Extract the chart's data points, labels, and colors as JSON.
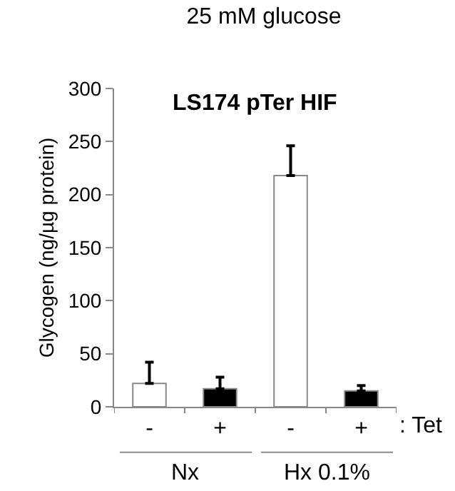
{
  "chart_data": {
    "type": "bar",
    "title": "25 mM glucose",
    "subtitle": "LS174 pTer HIF",
    "ylabel": "Glycogen (ng/µg protein)",
    "categories": [
      "-",
      "+",
      "-",
      "+"
    ],
    "values": [
      22,
      17,
      218,
      15
    ],
    "colors": [
      "#ffffff",
      "#000000",
      "#ffffff",
      "#000000"
    ],
    "errors": [
      [
        22,
        42
      ],
      [
        17,
        28
      ],
      [
        218,
        246
      ],
      [
        15,
        20
      ]
    ],
    "ylim": [
      0,
      300
    ],
    "yticks": [
      0,
      50,
      100,
      150,
      200,
      250,
      300
    ],
    "grid": false,
    "legend": false,
    "annotations": [
      ": Tet",
      "Nx",
      "Hx 0.1%"
    ]
  }
}
